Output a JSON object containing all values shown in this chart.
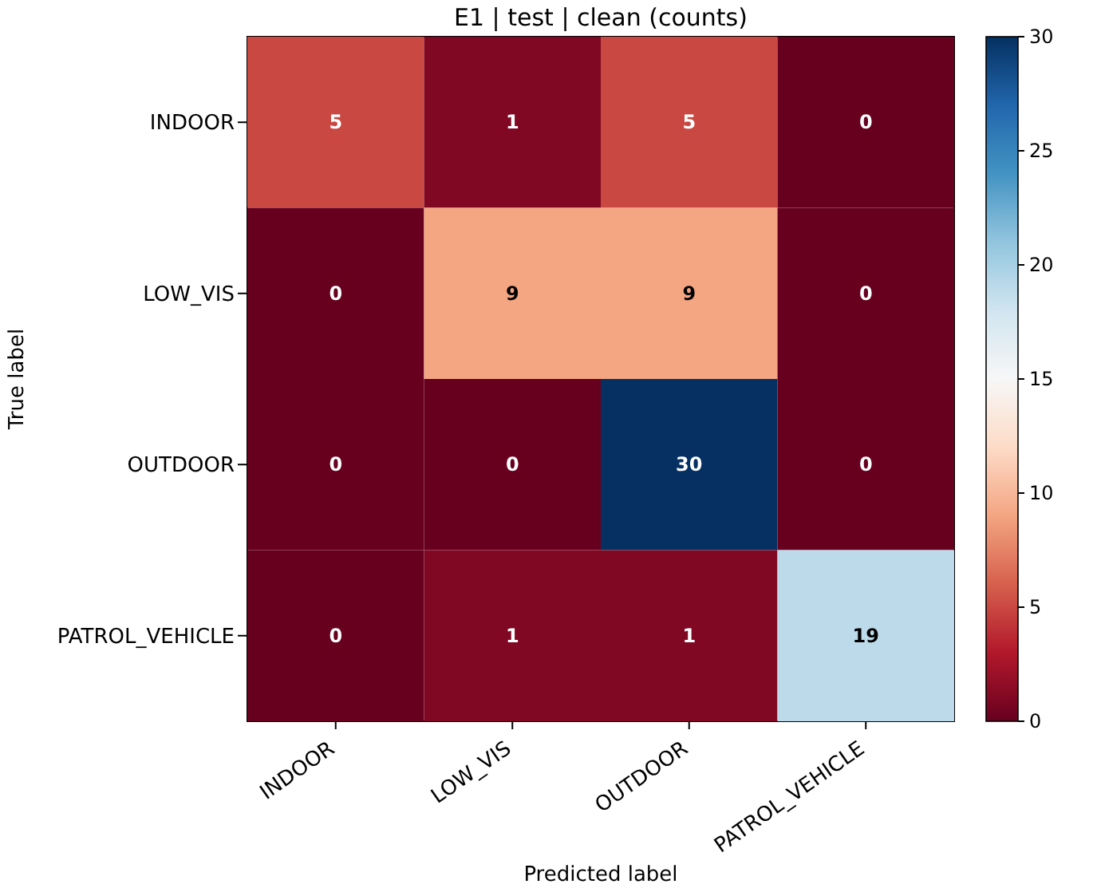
{
  "chart_data": {
    "type": "heatmap",
    "title": "E1 | test | clean (counts)",
    "xlabel": "Predicted label",
    "ylabel": "True label",
    "categories": [
      "INDOOR",
      "LOW_VIS",
      "OUTDOOR",
      "PATROL_VEHICLE"
    ],
    "y_categories": [
      "INDOOR",
      "LOW_VIS",
      "OUTDOOR",
      "PATROL_VEHICLE"
    ],
    "cells": [
      [
        5,
        1,
        5,
        0
      ],
      [
        0,
        9,
        9,
        0
      ],
      [
        0,
        0,
        30,
        0
      ],
      [
        0,
        1,
        1,
        19
      ]
    ],
    "clim": [
      0,
      30
    ],
    "cticks": [
      0,
      5,
      10,
      15,
      20,
      25,
      30
    ],
    "data_labels": true
  }
}
